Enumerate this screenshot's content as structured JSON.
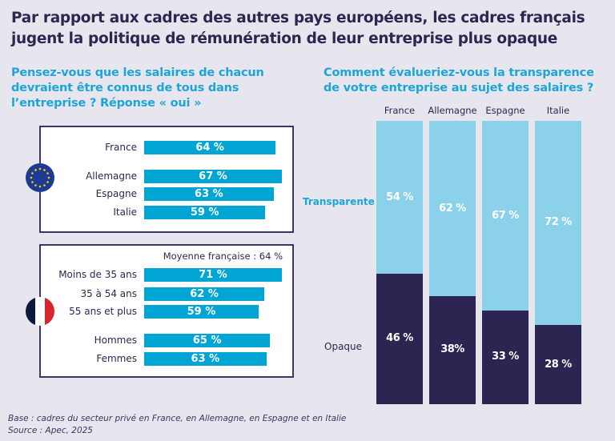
{
  "title": [
    "Par rapport aux cadres des autres pays européens, les cadres français",
    "jugent la politique de rémunération de leur entreprise plus opaque"
  ],
  "colors": {
    "bar": "#00a5d4",
    "transparent": "#8bd1ea",
    "opaque": "#2a2651",
    "accent": "#1ea5d8"
  },
  "chart_data": [
    {
      "type": "bar",
      "orientation": "horizontal",
      "title": [
        "Pensez-vous que les salaires de chacun",
        "devraient être connus de tous dans",
        "l’entreprise ? Réponse « oui »"
      ],
      "groups": [
        {
          "icon": "eu-flag-icon",
          "note": "",
          "categories": [
            "France",
            "Allemagne",
            "Espagne",
            "Italie"
          ],
          "values": [
            64,
            67,
            63,
            59
          ],
          "labels": [
            "64 %",
            "67 %",
            "63 %",
            "59 %"
          ]
        },
        {
          "icon": "france-flag-icon",
          "note": "Moyenne française : 64 %",
          "categories": [
            "Moins de 35 ans",
            "35 à 54 ans",
            "55 ans et plus",
            "Hommes",
            "Femmes"
          ],
          "values": [
            71,
            62,
            59,
            65,
            63
          ],
          "labels": [
            "71 %",
            "62 %",
            "59 %",
            "65 %",
            "63 %"
          ]
        }
      ]
    },
    {
      "type": "bar",
      "stacked": true,
      "title": [
        "Comment évalueriez-vous la transparence",
        "de votre entreprise au sujet des salaires ?"
      ],
      "categories": [
        "France",
        "Allemagne",
        "Espagne",
        "Italie"
      ],
      "series": [
        {
          "name": "Opaque",
          "values": [
            46,
            38,
            33,
            28
          ],
          "labels": [
            "46 %",
            "38%",
            "33 %",
            "28 %"
          ]
        },
        {
          "name": "Transparente",
          "values": [
            54,
            62,
            67,
            72
          ],
          "labels": [
            "54 %",
            "62 %",
            "67 %",
            "72 %"
          ]
        }
      ]
    }
  ],
  "footer": [
    "Base : cadres du secteur privé en France, en Allemagne, en Espagne et en Italie",
    "Source : Apec, 2025"
  ]
}
